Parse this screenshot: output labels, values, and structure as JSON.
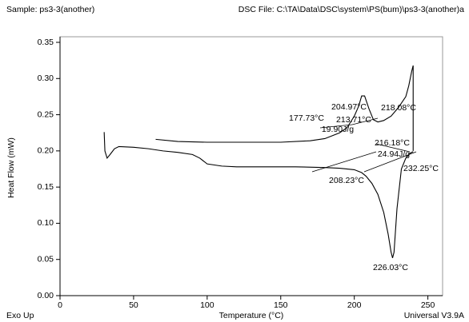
{
  "chart_data": {
    "type": "line",
    "header_left": "Sample: ps3-3(another)",
    "header_right": "DSC File: C:\\TA\\Data\\DSC\\system\\PS(bum)\\ps3-3(another)a",
    "footer_left": "Exo Up",
    "footer_right": "Universal V3.9A",
    "xlabel": "Temperature (°C)",
    "ylabel": "Heat Flow (mW)",
    "xlim": [
      0,
      260
    ],
    "ylim": [
      0,
      0.35
    ],
    "xticks": [
      0,
      50,
      100,
      150,
      200,
      250
    ],
    "yticks": [
      {
        "value": 0,
        "label": "0.00"
      },
      {
        "value": 0.05,
        "label": "0.05"
      },
      {
        "value": 0.1,
        "label": "0.10"
      },
      {
        "value": 0.15,
        "label": "0.15"
      },
      {
        "value": 0.2,
        "label": "0.20"
      },
      {
        "value": 0.25,
        "label": "0.25"
      },
      {
        "value": 0.3,
        "label": "0.30"
      },
      {
        "value": 0.35,
        "label": "0.35"
      }
    ],
    "series": [
      {
        "color": "#000000",
        "x": [
          30,
          30.5,
          32,
          34,
          37,
          40,
          50,
          60,
          70,
          80,
          90,
          95,
          100,
          110,
          120,
          140,
          160,
          180,
          190,
          200,
          205,
          208,
          212,
          216,
          220,
          223,
          225,
          226,
          227,
          229,
          232,
          235,
          238,
          240
        ],
        "values": [
          0.226,
          0.2,
          0.19,
          0.195,
          0.203,
          0.206,
          0.205,
          0.203,
          0.2,
          0.198,
          0.195,
          0.19,
          0.182,
          0.179,
          0.178,
          0.178,
          0.178,
          0.177,
          0.176,
          0.174,
          0.17,
          0.165,
          0.155,
          0.14,
          0.115,
          0.085,
          0.06,
          0.052,
          0.06,
          0.12,
          0.175,
          0.19,
          0.197,
          0.199
        ]
      },
      {
        "color": "#000000",
        "x": [
          65,
          80,
          100,
          120,
          150,
          170,
          180,
          190,
          195,
          200,
          203,
          205,
          207,
          210,
          213,
          216,
          220,
          225,
          230,
          235,
          237,
          239,
          240,
          240
        ],
        "values": [
          0.216,
          0.213,
          0.212,
          0.212,
          0.212,
          0.214,
          0.217,
          0.225,
          0.232,
          0.248,
          0.262,
          0.276,
          0.276,
          0.258,
          0.243,
          0.24,
          0.242,
          0.248,
          0.26,
          0.275,
          0.29,
          0.31,
          0.318,
          0.2
        ]
      }
    ],
    "annotations": [
      "204.97°C",
      "177.73°C",
      "213.71°C",
      "218.08°C",
      "19.90J/g",
      "216.18°C",
      "24.94J/g",
      "208.23°C",
      "232.25°C",
      "226.03°C"
    ]
  }
}
